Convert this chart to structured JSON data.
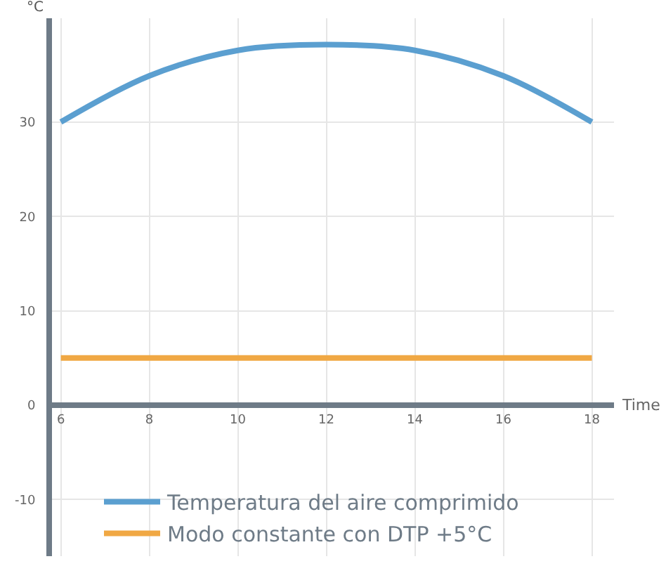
{
  "chart_data": {
    "type": "line",
    "xlabel": "Time",
    "ylabel": "°C",
    "x": [
      6,
      8,
      10,
      12,
      14,
      16,
      18
    ],
    "series": [
      {
        "name": "Temperatura del aire comprimido",
        "color": "#5b9fd0",
        "values": [
          30,
          34.9,
          37.6,
          38.2,
          37.6,
          34.9,
          30
        ]
      },
      {
        "name": "Modo constante con DTP +5°C",
        "color": "#f0a844",
        "values": [
          5,
          5,
          5,
          5,
          5,
          5,
          5
        ]
      }
    ],
    "xlim": [
      5.8,
      18.5
    ],
    "xticks": [
      6,
      8,
      10,
      12,
      14,
      16,
      18
    ],
    "ylim": [
      -16,
      41
    ],
    "yticks": [
      -10,
      0,
      10,
      20,
      30
    ],
    "grid": true,
    "legend": "bottom left",
    "marker": "none",
    "line_style": "solid"
  }
}
